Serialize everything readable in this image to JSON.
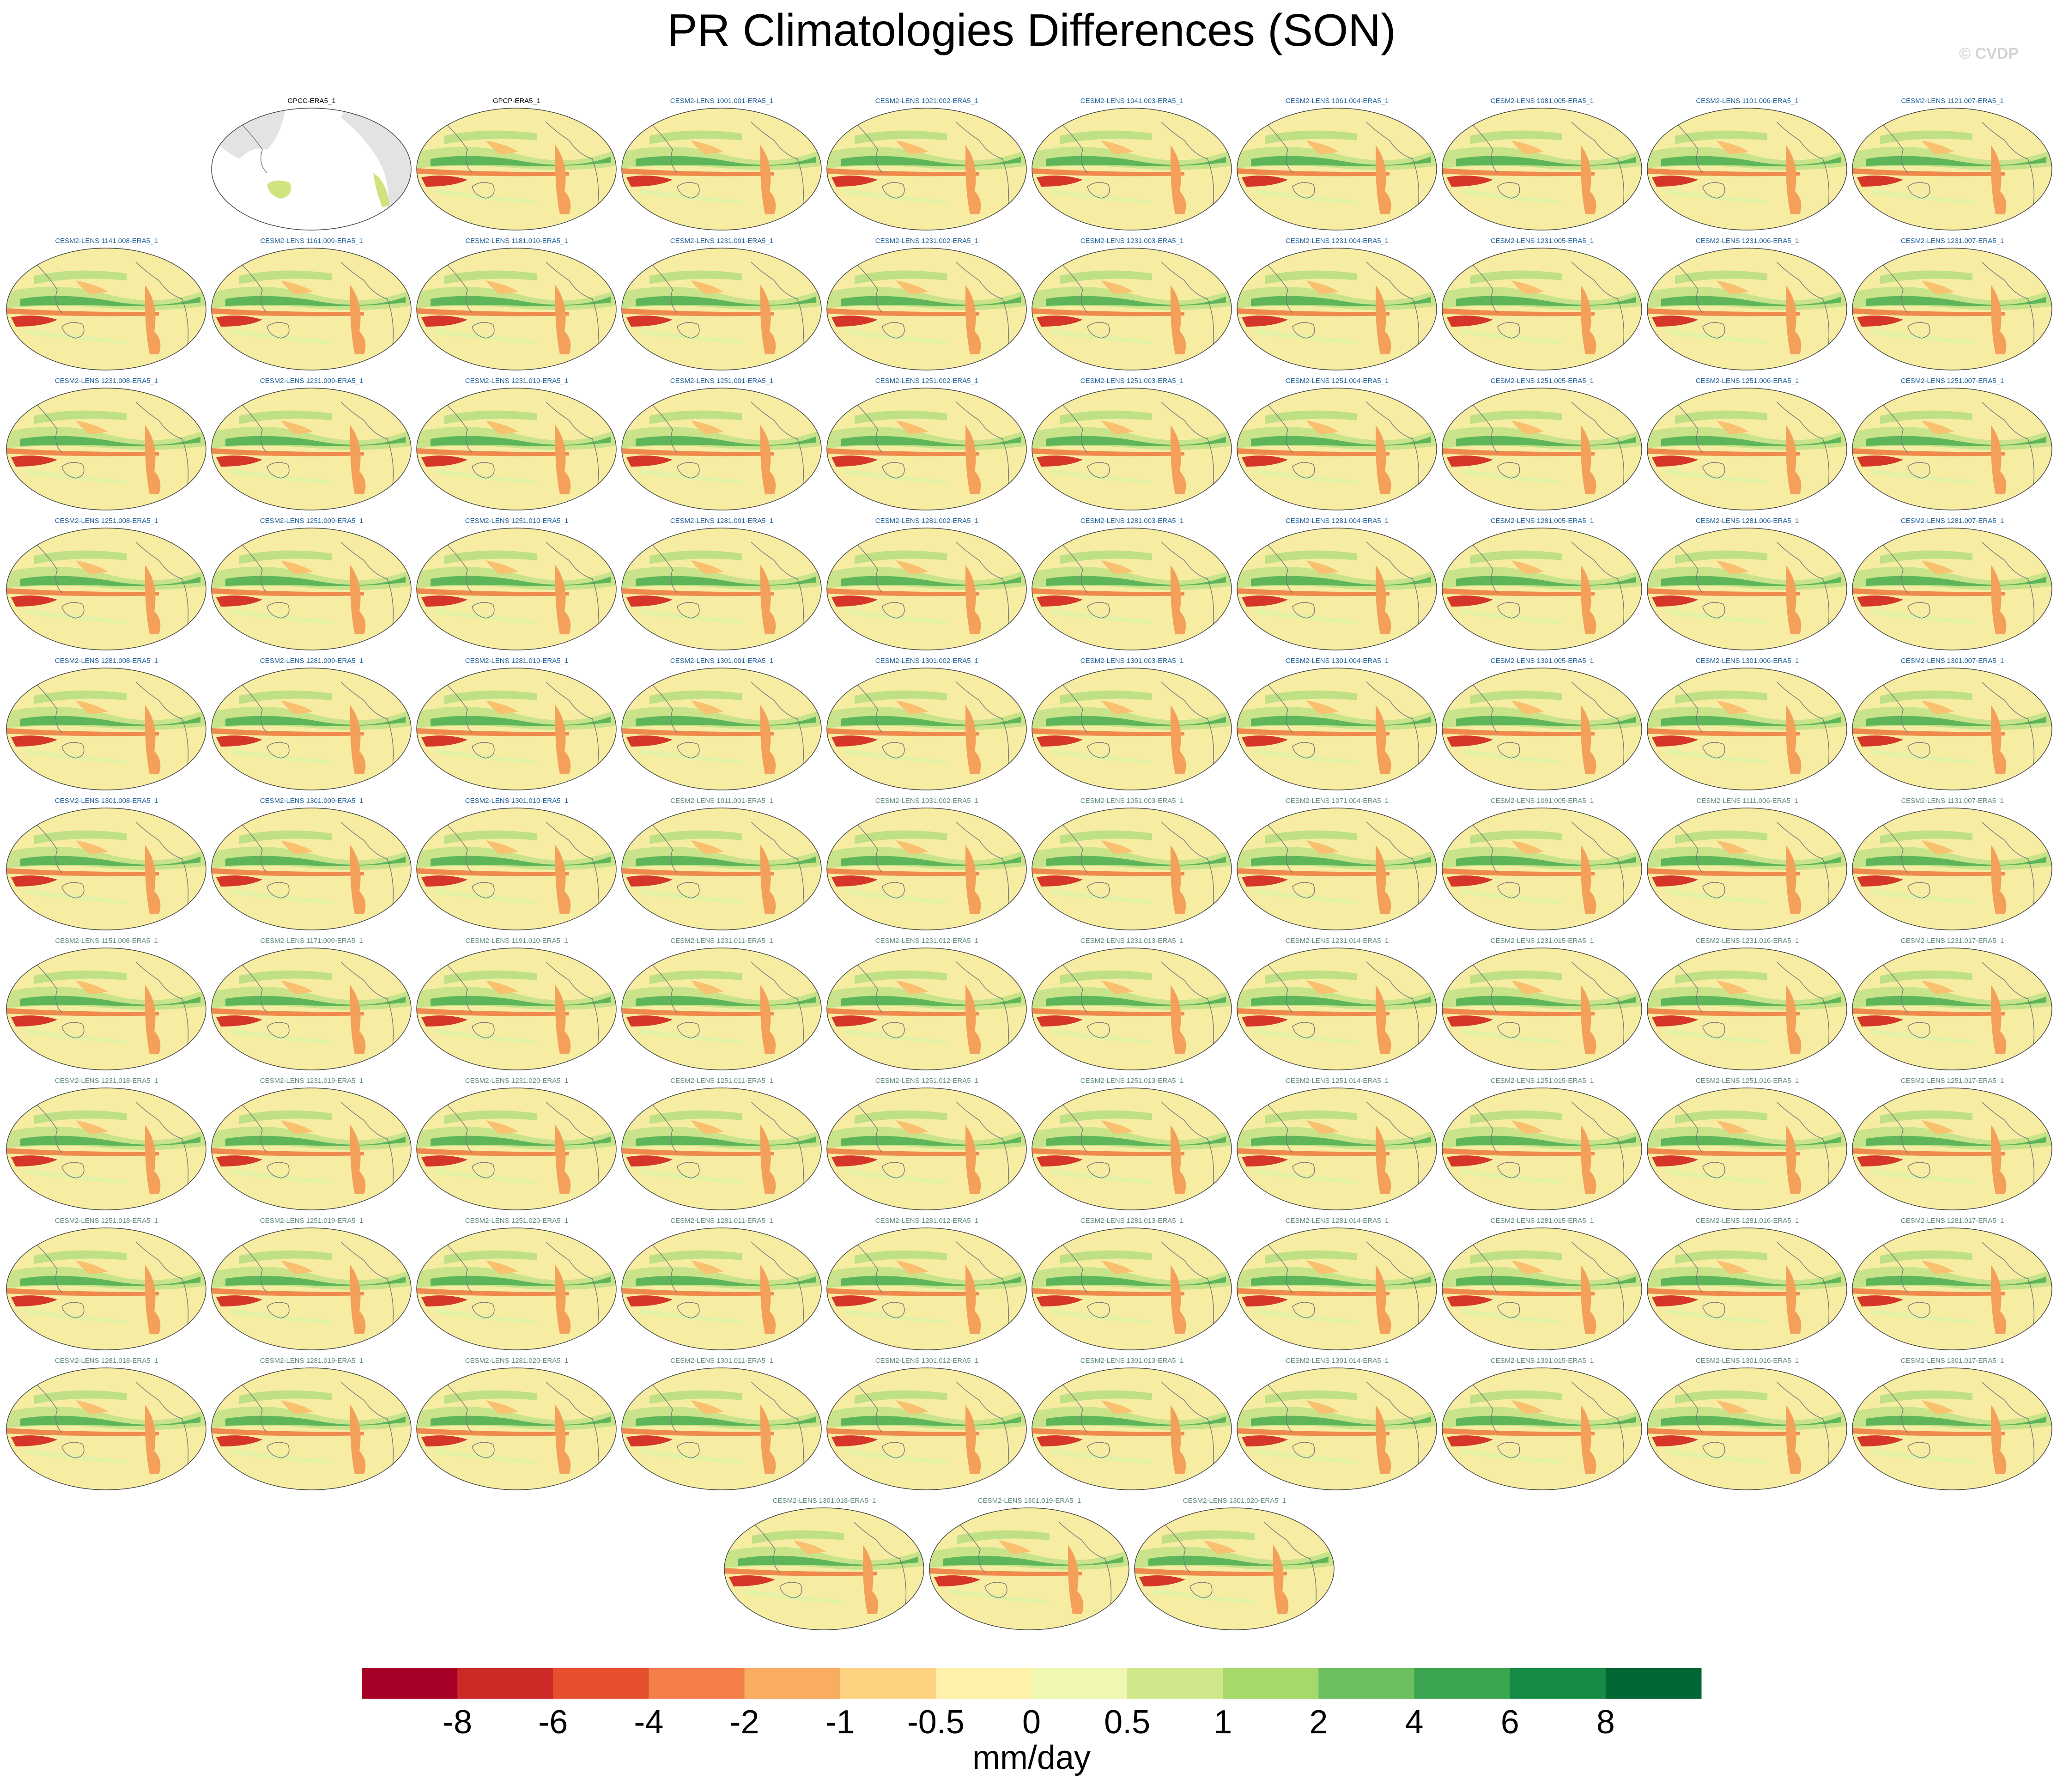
{
  "title": "PR Climatologies Differences (SON)",
  "watermark": "© CVDP",
  "panels": [
    {
      "label": "GPCC-ERA5_1",
      "color": "#000000"
    },
    {
      "label": "GPCP-ERA5_1",
      "color": "#000000"
    },
    {
      "label": "CESM2-LENS 1001.001-ERA5_1",
      "color": "#1f5f99"
    },
    {
      "label": "CESM2-LENS 1021.002-ERA5_1",
      "color": "#1f5f99"
    },
    {
      "label": "CESM2-LENS 1041.003-ERA5_1",
      "color": "#1f5f99"
    },
    {
      "label": "CESM2-LENS 1061.004-ERA5_1",
      "color": "#1f5f99"
    },
    {
      "label": "CESM2-LENS 1081.005-ERA5_1",
      "color": "#1f5f99"
    },
    {
      "label": "CESM2-LENS 1101.006-ERA5_1",
      "color": "#1f5f99"
    },
    {
      "label": "CESM2-LENS 1121.007-ERA5_1",
      "color": "#1f5f99"
    },
    {
      "label": "CESM2-LENS 1141.008-ERA5_1",
      "color": "#1f5f99"
    },
    {
      "label": "CESM2-LENS 1161.009-ERA5_1",
      "color": "#1f5f99"
    },
    {
      "label": "CESM2-LENS 1181.010-ERA5_1",
      "color": "#1f5f99"
    },
    {
      "label": "CESM2-LENS 1231.001-ERA5_1",
      "color": "#1f5f99"
    },
    {
      "label": "CESM2-LENS 1231.002-ERA5_1",
      "color": "#1f5f99"
    },
    {
      "label": "CESM2-LENS 1231.003-ERA5_1",
      "color": "#1f5f99"
    },
    {
      "label": "CESM2-LENS 1231.004-ERA5_1",
      "color": "#1f5f99"
    },
    {
      "label": "CESM2-LENS 1231.005-ERA5_1",
      "color": "#1f5f99"
    },
    {
      "label": "CESM2-LENS 1231.006-ERA5_1",
      "color": "#1f5f99"
    },
    {
      "label": "CESM2-LENS 1231.007-ERA5_1",
      "color": "#1f5f99"
    },
    {
      "label": "CESM2-LENS 1231.008-ERA5_1",
      "color": "#1f5f99"
    },
    {
      "label": "CESM2-LENS 1231.009-ERA5_1",
      "color": "#1f5f99"
    },
    {
      "label": "CESM2-LENS 1231.010-ERA5_1",
      "color": "#1f5f99"
    },
    {
      "label": "CESM2-LENS 1251.001-ERA5_1",
      "color": "#1f5f99"
    },
    {
      "label": "CESM2-LENS 1251.002-ERA5_1",
      "color": "#1f5f99"
    },
    {
      "label": "CESM2-LENS 1251.003-ERA5_1",
      "color": "#1f5f99"
    },
    {
      "label": "CESM2-LENS 1251.004-ERA5_1",
      "color": "#1f5f99"
    },
    {
      "label": "CESM2-LENS 1251.005-ERA5_1",
      "color": "#1f5f99"
    },
    {
      "label": "CESM2-LENS 1251.006-ERA5_1",
      "color": "#1f5f99"
    },
    {
      "label": "CESM2-LENS 1251.007-ERA5_1",
      "color": "#1f5f99"
    },
    {
      "label": "CESM2-LENS 1251.008-ERA5_1",
      "color": "#1f5f99"
    },
    {
      "label": "CESM2-LENS 1251.009-ERA5_1",
      "color": "#1f5f99"
    },
    {
      "label": "CESM2-LENS 1251.010-ERA5_1",
      "color": "#1f5f99"
    },
    {
      "label": "CESM2-LENS 1281.001-ERA5_1",
      "color": "#1f5f99"
    },
    {
      "label": "CESM2-LENS 1281.002-ERA5_1",
      "color": "#1f5f99"
    },
    {
      "label": "CESM2-LENS 1281.003-ERA5_1",
      "color": "#1f5f99"
    },
    {
      "label": "CESM2-LENS 1281.004-ERA5_1",
      "color": "#1f5f99"
    },
    {
      "label": "CESM2-LENS 1281.005-ERA5_1",
      "color": "#1f5f99"
    },
    {
      "label": "CESM2-LENS 1281.006-ERA5_1",
      "color": "#1f5f99"
    },
    {
      "label": "CESM2-LENS 1281.007-ERA5_1",
      "color": "#1f5f99"
    },
    {
      "label": "CESM2-LENS 1281.008-ERA5_1",
      "color": "#1f5f99"
    },
    {
      "label": "CESM2-LENS 1281.009-ERA5_1",
      "color": "#1f5f99"
    },
    {
      "label": "CESM2-LENS 1281.010-ERA5_1",
      "color": "#1f5f99"
    },
    {
      "label": "CESM2-LENS 1301.001-ERA5_1",
      "color": "#1f5f99"
    },
    {
      "label": "CESM2-LENS 1301.002-ERA5_1",
      "color": "#1f5f99"
    },
    {
      "label": "CESM2-LENS 1301.003-ERA5_1",
      "color": "#1f5f99"
    },
    {
      "label": "CESM2-LENS 1301.004-ERA5_1",
      "color": "#1f5f99"
    },
    {
      "label": "CESM2-LENS 1301.005-ERA5_1",
      "color": "#1f5f99"
    },
    {
      "label": "CESM2-LENS 1301.006-ERA5_1",
      "color": "#1f5f99"
    },
    {
      "label": "CESM2-LENS 1301.007-ERA5_1",
      "color": "#1f5f99"
    },
    {
      "label": "CESM2-LENS 1301.008-ERA5_1",
      "color": "#1f5f99"
    },
    {
      "label": "CESM2-LENS 1301.009-ERA5_1",
      "color": "#1f5f99"
    },
    {
      "label": "CESM2-LENS 1301.010-ERA5_1",
      "color": "#1f5f99"
    },
    {
      "label": "CESM2-LENS 1011.001-ERA5_1",
      "color": "#5f8a78"
    },
    {
      "label": "CESM2-LENS 1031.002-ERA5_1",
      "color": "#5f8a78"
    },
    {
      "label": "CESM2-LENS 1051.003-ERA5_1",
      "color": "#5f8a78"
    },
    {
      "label": "CESM2-LENS 1071.004-ERA5_1",
      "color": "#5f8a78"
    },
    {
      "label": "CESM2-LENS 1091.005-ERA5_1",
      "color": "#5f8a78"
    },
    {
      "label": "CESM2-LENS 1111.006-ERA5_1",
      "color": "#5f8a78"
    },
    {
      "label": "CESM2-LENS 1131.007-ERA5_1",
      "color": "#5f8a78"
    },
    {
      "label": "CESM2-LENS 1151.008-ERA5_1",
      "color": "#5f8a78"
    },
    {
      "label": "CESM2-LENS 1171.009-ERA5_1",
      "color": "#5f8a78"
    },
    {
      "label": "CESM2-LENS 1191.010-ERA5_1",
      "color": "#5f8a78"
    },
    {
      "label": "CESM2-LENS 1231.011-ERA5_1",
      "color": "#5f8a78"
    },
    {
      "label": "CESM2-LENS 1231.012-ERA5_1",
      "color": "#5f8a78"
    },
    {
      "label": "CESM2-LENS 1231.013-ERA5_1",
      "color": "#5f8a78"
    },
    {
      "label": "CESM2-LENS 1231.014-ERA5_1",
      "color": "#5f8a78"
    },
    {
      "label": "CESM2-LENS 1231.015-ERA5_1",
      "color": "#5f8a78"
    },
    {
      "label": "CESM2-LENS 1231.016-ERA5_1",
      "color": "#5f8a78"
    },
    {
      "label": "CESM2-LENS 1231.017-ERA5_1",
      "color": "#5f8a78"
    },
    {
      "label": "CESM2-LENS 1231.018-ERA5_1",
      "color": "#5f8a78"
    },
    {
      "label": "CESM2-LENS 1231.019-ERA5_1",
      "color": "#5f8a78"
    },
    {
      "label": "CESM2-LENS 1231.020-ERA5_1",
      "color": "#5f8a78"
    },
    {
      "label": "CESM2-LENS 1251.011-ERA5_1",
      "color": "#5f8a78"
    },
    {
      "label": "CESM2-LENS 1251.012-ERA5_1",
      "color": "#5f8a78"
    },
    {
      "label": "CESM2-LENS 1251.013-ERA5_1",
      "color": "#5f8a78"
    },
    {
      "label": "CESM2-LENS 1251.014-ERA5_1",
      "color": "#5f8a78"
    },
    {
      "label": "CESM2-LENS 1251.015-ERA5_1",
      "color": "#5f8a78"
    },
    {
      "label": "CESM2-LENS 1251.016-ERA5_1",
      "color": "#5f8a78"
    },
    {
      "label": "CESM2-LENS 1251.017-ERA5_1",
      "color": "#5f8a78"
    },
    {
      "label": "CESM2-LENS 1251.018-ERA5_1",
      "color": "#5f8a78"
    },
    {
      "label": "CESM2-LENS 1251.019-ERA5_1",
      "color": "#5f8a78"
    },
    {
      "label": "CESM2-LENS 1251.020-ERA5_1",
      "color": "#5f8a78"
    },
    {
      "label": "CESM2-LENS 1281.011-ERA5_1",
      "color": "#5f8a78"
    },
    {
      "label": "CESM2-LENS 1281.012-ERA5_1",
      "color": "#5f8a78"
    },
    {
      "label": "CESM2-LENS 1281.013-ERA5_1",
      "color": "#5f8a78"
    },
    {
      "label": "CESM2-LENS 1281.014-ERA5_1",
      "color": "#5f8a78"
    },
    {
      "label": "CESM2-LENS 1281.015-ERA5_1",
      "color": "#5f8a78"
    },
    {
      "label": "CESM2-LENS 1281.016-ERA5_1",
      "color": "#5f8a78"
    },
    {
      "label": "CESM2-LENS 1281.017-ERA5_1",
      "color": "#5f8a78"
    },
    {
      "label": "CESM2-LENS 1281.018-ERA5_1",
      "color": "#5f8a78"
    },
    {
      "label": "CESM2-LENS 1281.019-ERA5_1",
      "color": "#5f8a78"
    },
    {
      "label": "CESM2-LENS 1281.020-ERA5_1",
      "color": "#5f8a78"
    },
    {
      "label": "CESM2-LENS 1301.011-ERA5_1",
      "color": "#5f8a78"
    },
    {
      "label": "CESM2-LENS 1301.012-ERA5_1",
      "color": "#5f8a78"
    },
    {
      "label": "CESM2-LENS 1301.013-ERA5_1",
      "color": "#5f8a78"
    },
    {
      "label": "CESM2-LENS 1301.014-ERA5_1",
      "color": "#5f8a78"
    },
    {
      "label": "CESM2-LENS 1301.015-ERA5_1",
      "color": "#5f8a78"
    },
    {
      "label": "CESM2-LENS 1301.016-ERA5_1",
      "color": "#5f8a78"
    },
    {
      "label": "CESM2-LENS 1301.017-ERA5_1",
      "color": "#5f8a78"
    },
    {
      "label": "CESM2-LENS 1301.018-ERA5_1",
      "color": "#5f8a78"
    },
    {
      "label": "CESM2-LENS 1301.019-ERA5_1",
      "color": "#5f8a78"
    },
    {
      "label": "CESM2-LENS 1301.020-ERA5_1",
      "color": "#5f8a78"
    }
  ],
  "colorbar": {
    "colors": [
      "#a50026",
      "#cc2a26",
      "#e6502f",
      "#f47f4a",
      "#f9ad61",
      "#fdd381",
      "#fff1a8",
      "#f0f7b2",
      "#cfe88b",
      "#a6d86a",
      "#6bbf5f",
      "#3ba550",
      "#168b45",
      "#006634"
    ],
    "ticks": [
      -8,
      -6,
      -4,
      -2,
      -1,
      -0.5,
      0,
      0.5,
      1,
      2,
      4,
      6,
      8
    ],
    "units": "mm/day"
  }
}
